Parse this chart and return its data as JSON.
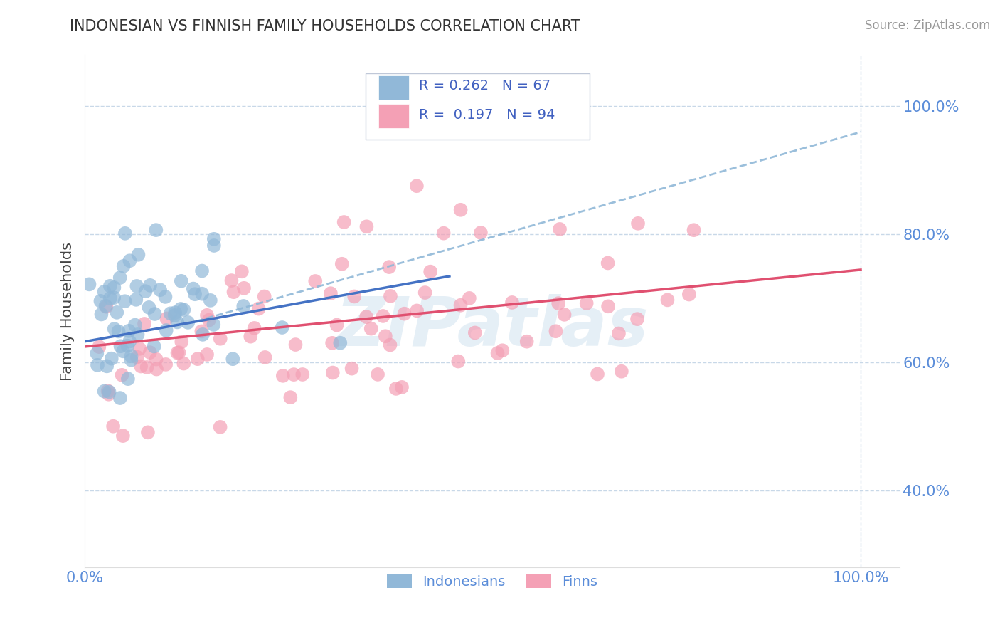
{
  "title": "INDONESIAN VS FINNISH FAMILY HOUSEHOLDS CORRELATION CHART",
  "source_text": "Source: ZipAtlas.com",
  "ylabel": "Family Households",
  "xlim": [
    0.0,
    1.05
  ],
  "ylim": [
    0.28,
    1.08
  ],
  "x_tick_positions": [
    0.0,
    1.0
  ],
  "x_tick_labels": [
    "0.0%",
    "100.0%"
  ],
  "y_tick_positions": [
    0.4,
    0.6,
    0.8,
    1.0
  ],
  "y_tick_labels": [
    "40.0%",
    "60.0%",
    "80.0%",
    "100.0%"
  ],
  "r_indonesian": 0.262,
  "n_indonesian": 67,
  "r_finnish": 0.197,
  "n_finnish": 94,
  "indonesian_dot_color": "#91b8d8",
  "finnish_dot_color": "#f4a0b5",
  "indonesian_line_color": "#4472c4",
  "finnish_line_color": "#e05070",
  "dashed_line_color": "#90b8d8",
  "watermark_color": "#c0d8ea",
  "background_color": "#ffffff",
  "grid_color": "#c8d8e8",
  "title_color": "#333333",
  "axis_label_color": "#444444",
  "tick_color": "#5b8dd9",
  "legend_text_color": "#4060c0",
  "legend_box_color": "#f0f4ff",
  "source_color": "#999999",
  "indo_line_x_start": 0.0,
  "indo_line_x_end": 0.47,
  "indo_line_y_start": 0.633,
  "indo_line_y_end": 0.735,
  "finn_line_x_start": 0.0,
  "finn_line_x_end": 1.0,
  "finn_line_y_start": 0.625,
  "finn_line_y_end": 0.745,
  "dash_line_x_start": 0.13,
  "dash_line_x_end": 1.0,
  "dash_line_y_start": 0.66,
  "dash_line_y_end": 0.96
}
